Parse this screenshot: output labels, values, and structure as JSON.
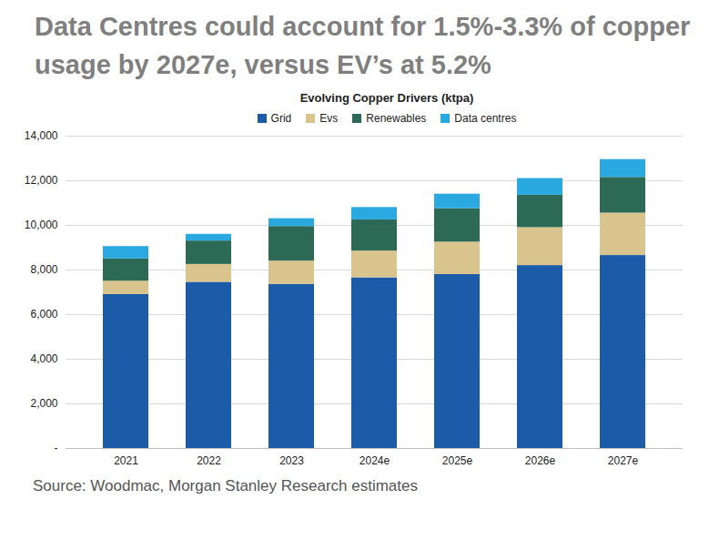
{
  "chart_data": {
    "type": "bar",
    "stacked": true,
    "title": "Data Centres could account for 1.5%-3.3% of copper usage by 2027e, versus EV’s at 5.2%",
    "subtitle": "Evolving Copper Drivers (ktpa)",
    "caption": "Source: Woodmac, Morgan Stanley Research estimates",
    "categories": [
      "2021",
      "2022",
      "2023",
      "2024e",
      "2025e",
      "2026e",
      "2027e"
    ],
    "series": [
      {
        "name": "Grid",
        "color": "#1b5ba8",
        "values": [
          6900,
          7450,
          7350,
          7650,
          7800,
          8200,
          8650
        ]
      },
      {
        "name": "Evs",
        "color": "#d8c48c",
        "values": [
          600,
          800,
          1050,
          1200,
          1450,
          1700,
          1900
        ]
      },
      {
        "name": "Renewables",
        "color": "#2d6a56",
        "values": [
          1000,
          1050,
          1550,
          1400,
          1500,
          1450,
          1600
        ]
      },
      {
        "name": "Data centres",
        "color": "#2aa8e0",
        "values": [
          550,
          300,
          350,
          550,
          650,
          750,
          800
        ]
      }
    ],
    "ylim": [
      0,
      14000
    ],
    "yticks": [
      {
        "value": 0,
        "label": "-"
      },
      {
        "value": 2000,
        "label": "2,000"
      },
      {
        "value": 4000,
        "label": "4,000"
      },
      {
        "value": 6000,
        "label": "6,000"
      },
      {
        "value": 8000,
        "label": "8,000"
      },
      {
        "value": 10000,
        "label": "10,000"
      },
      {
        "value": 12000,
        "label": "12,000"
      },
      {
        "value": 14000,
        "label": "14,000"
      }
    ],
    "grid": true,
    "legend": "top"
  }
}
